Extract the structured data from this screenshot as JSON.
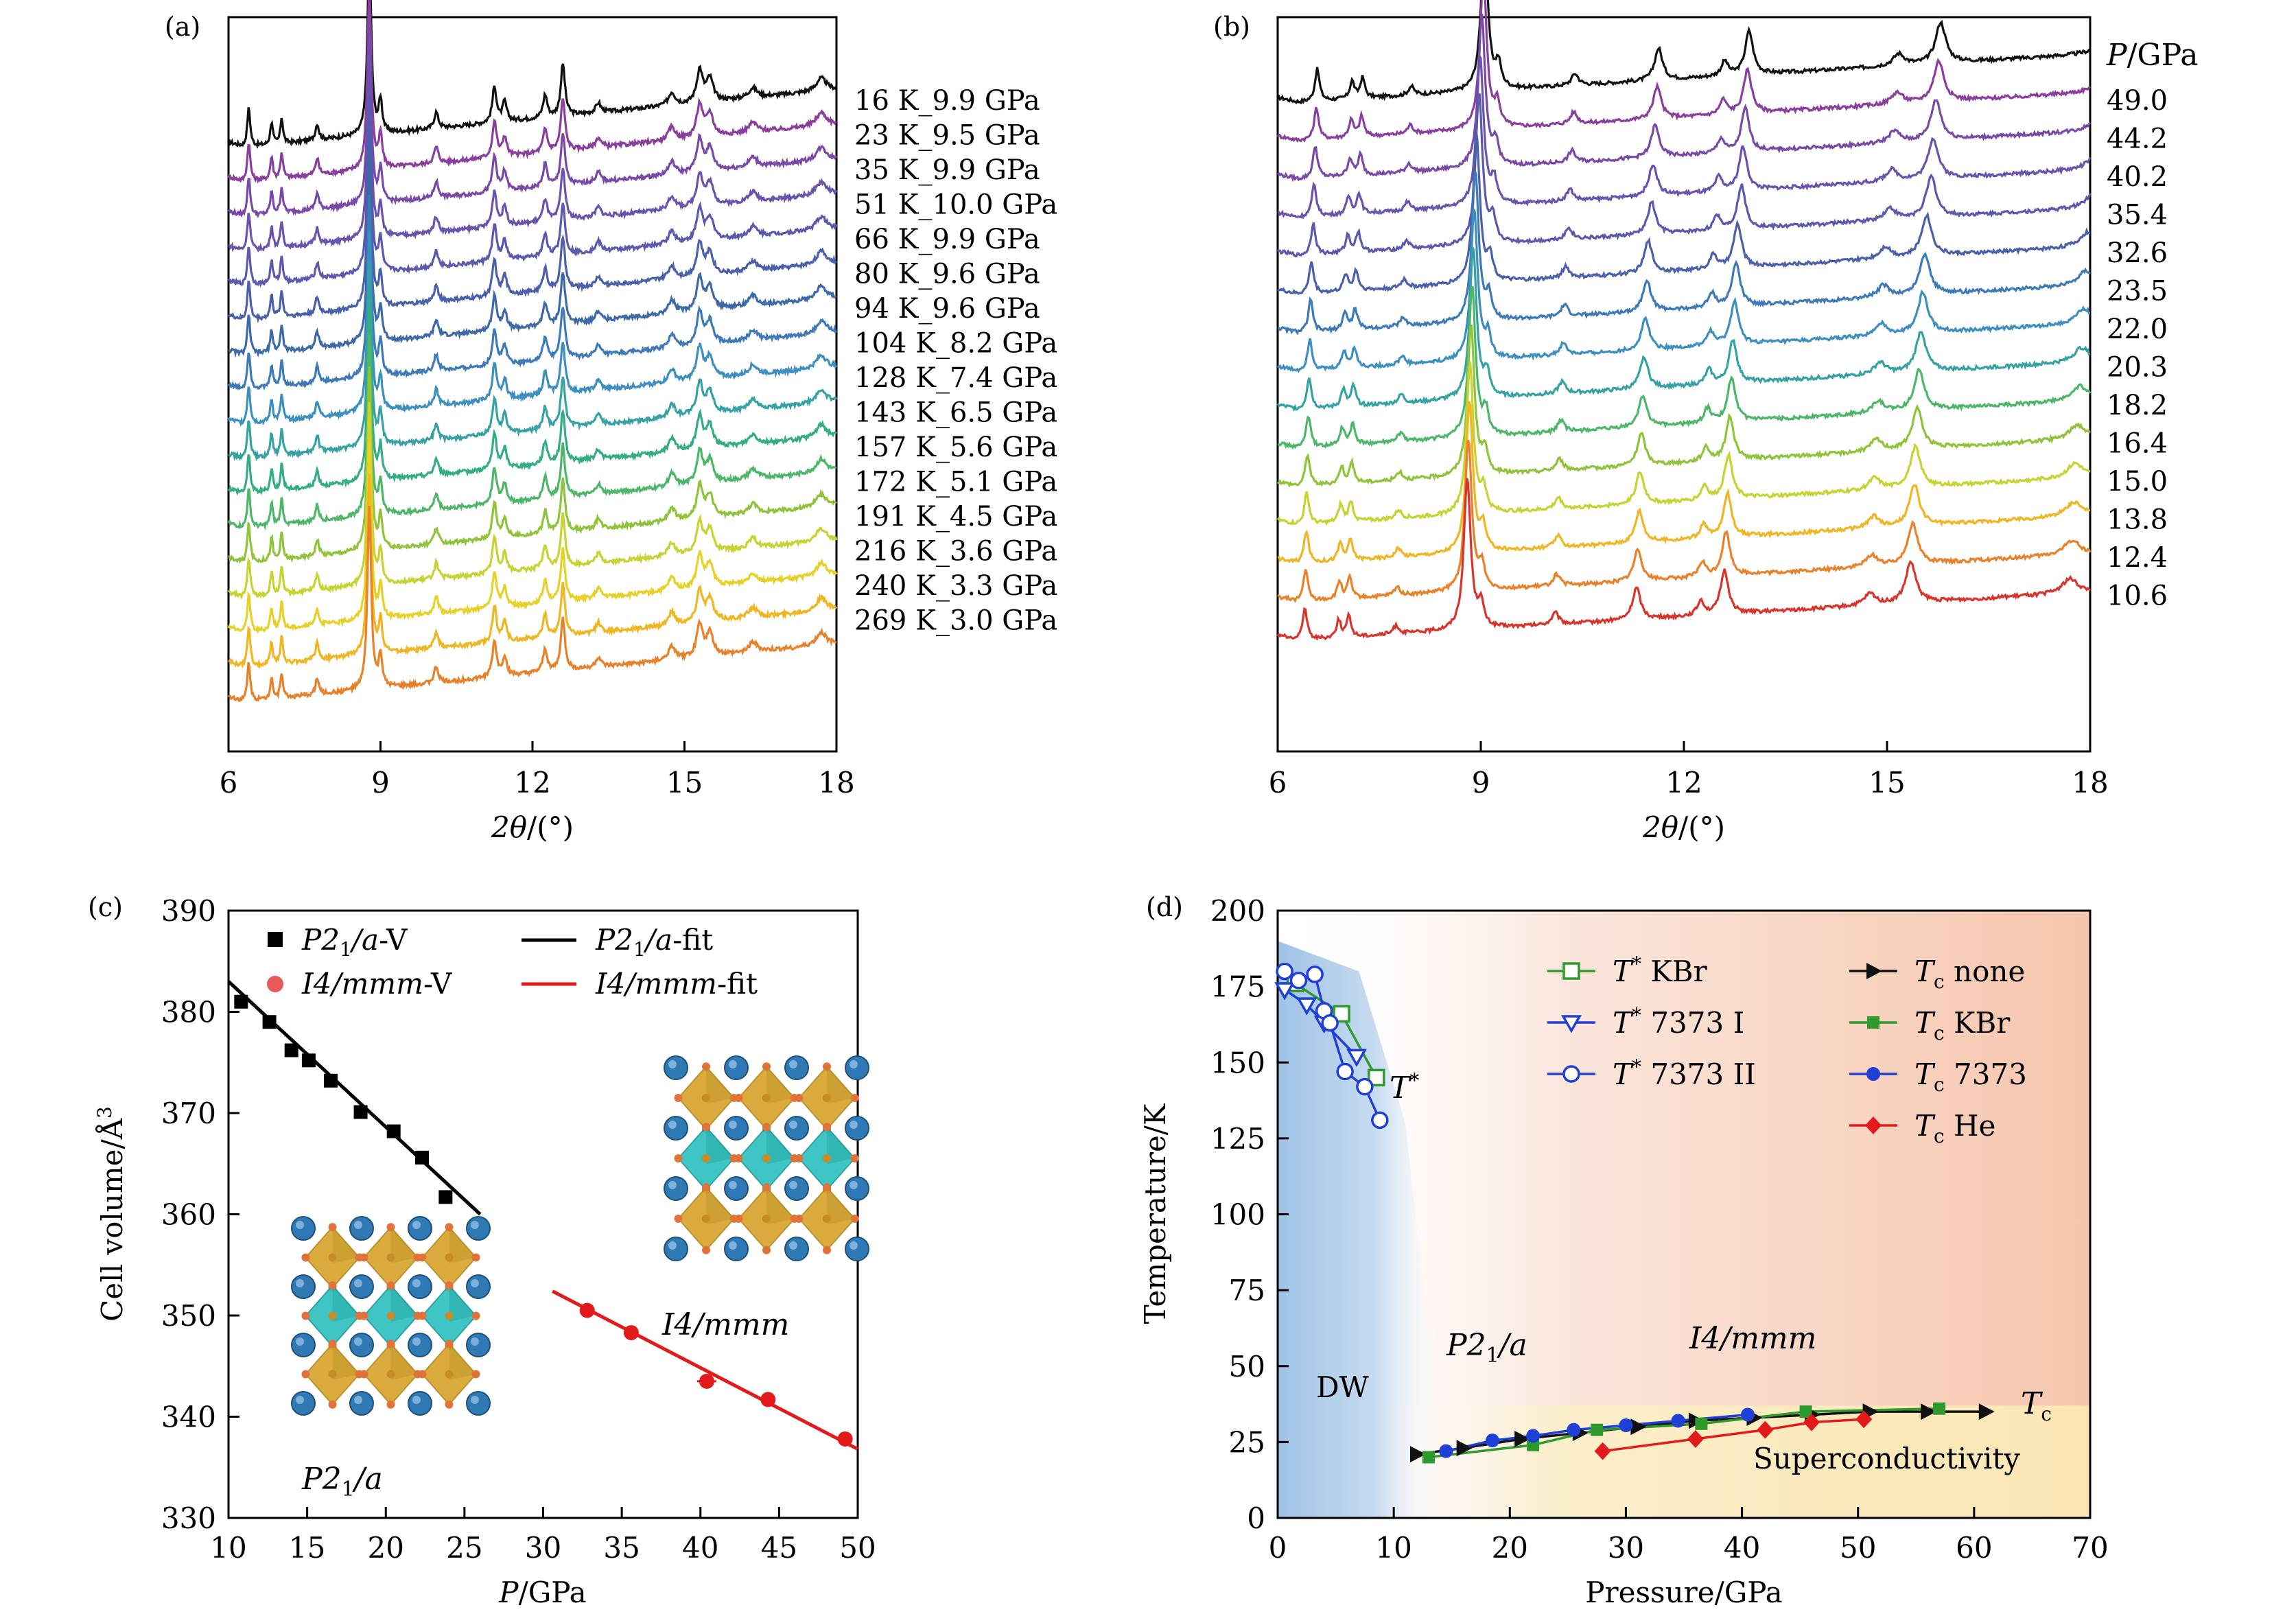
{
  "chart_data": [
    {
      "panel": "(a)",
      "type": "line",
      "xlabel": "2θ/(°)",
      "ylabel": "",
      "xlim": [
        6,
        18
      ],
      "xticks": [
        "6",
        "9",
        "12",
        "15",
        "18"
      ],
      "peaks_2theta": [
        6.4,
        6.85,
        7.05,
        7.75,
        8.78,
        9.0,
        10.1,
        11.25,
        11.45,
        12.25,
        12.6,
        13.3,
        14.75,
        15.3,
        15.45,
        16.35,
        17.7
      ],
      "series": [
        {
          "name": "16 K_9.9 GPa",
          "color": "#111111"
        },
        {
          "name": "23 K_9.5 GPa",
          "color": "#8a3f9f"
        },
        {
          "name": "35 K_9.9 GPa",
          "color": "#7a49a8"
        },
        {
          "name": "51 K_10.0 GPa",
          "color": "#6a52ad"
        },
        {
          "name": "66 K_9.9 GPa",
          "color": "#5a59ad"
        },
        {
          "name": "80 K_9.6 GPa",
          "color": "#4b60aa"
        },
        {
          "name": "94 K_9.6 GPa",
          "color": "#3e69a8"
        },
        {
          "name": "104 K_8.2 GPa",
          "color": "#3d7ab7"
        },
        {
          "name": "128 K_7.4 GPa",
          "color": "#3d8fc0"
        },
        {
          "name": "143 K_6.5 GPa",
          "color": "#36a2a4"
        },
        {
          "name": "157 K_5.6 GPa",
          "color": "#34ac84"
        },
        {
          "name": "172 K_5.1 GPa",
          "color": "#4db669"
        },
        {
          "name": "191 K_4.5 GPa",
          "color": "#8fc43a"
        },
        {
          "name": "216 K_3.6 GPa",
          "color": "#c7d233"
        },
        {
          "name": "240 K_3.3 GPa",
          "color": "#e7d129"
        },
        {
          "name": "269 K_3.0 GPa",
          "color": "#efb523"
        },
        {
          "name": "",
          "color": "#e9812a"
        }
      ]
    },
    {
      "panel": "(b)",
      "type": "line",
      "xlabel": "2θ/(°)",
      "ylabel": "",
      "legend_title": "P/GPa",
      "xlim": [
        6,
        18
      ],
      "xticks": [
        "6",
        "9",
        "12",
        "15",
        "18"
      ],
      "series": [
        {
          "name": "49.0",
          "color": "#111111",
          "peak_shift": 0.32
        },
        {
          "name": "44.2",
          "color": "#8a3f9f",
          "peak_shift": 0.3
        },
        {
          "name": "40.2",
          "color": "#7a49a8",
          "peak_shift": 0.27
        },
        {
          "name": "35.4",
          "color": "#6a52ad",
          "peak_shift": 0.24
        },
        {
          "name": "32.6",
          "color": "#5a59ad",
          "peak_shift": 0.22
        },
        {
          "name": "23.5",
          "color": "#4b60aa",
          "peak_shift": 0.17
        },
        {
          "name": "22.0",
          "color": "#3d7ab7",
          "peak_shift": 0.15
        },
        {
          "name": "20.3",
          "color": "#3d8fc0",
          "peak_shift": 0.13
        },
        {
          "name": "18.2",
          "color": "#36a2a4",
          "peak_shift": 0.11
        },
        {
          "name": "16.4",
          "color": "#4db669",
          "peak_shift": 0.09
        },
        {
          "name": "15.0",
          "color": "#8fc43a",
          "peak_shift": 0.07
        },
        {
          "name": "13.8",
          "color": "#c7d233",
          "peak_shift": 0.05
        },
        {
          "name": "12.4",
          "color": "#efb523",
          "peak_shift": 0.04
        },
        {
          "name": "10.6",
          "color": "#e9812a",
          "peak_shift": 0.02
        },
        {
          "name": "",
          "color": "#d9342b",
          "peak_shift": 0.0
        }
      ]
    },
    {
      "panel": "(c)",
      "type": "scatter",
      "xlabel": "P/GPa",
      "ylabel": "Cell volume/Å³",
      "xlim": [
        10,
        50
      ],
      "ylim": [
        330,
        390
      ],
      "xticks": [
        "10",
        "15",
        "20",
        "25",
        "30",
        "35",
        "40",
        "45",
        "50"
      ],
      "yticks": [
        "330",
        "340",
        "350",
        "360",
        "370",
        "380",
        "390"
      ],
      "series": [
        {
          "name": "P2₁/a-V",
          "color": "#000000",
          "marker": "square",
          "x": [
            10.8,
            12.6,
            14.0,
            15.1,
            16.5,
            18.4,
            20.5,
            22.3,
            23.8
          ],
          "y": [
            381.0,
            379.0,
            376.2,
            375.2,
            373.2,
            370.1,
            368.2,
            365.6,
            361.7
          ]
        },
        {
          "name": "I4/mmm-V",
          "color": "#e31a1c",
          "marker": "circle",
          "x": [
            32.8,
            35.6,
            40.4,
            44.3,
            49.2
          ],
          "y": [
            350.5,
            348.3,
            343.5,
            341.7,
            337.8
          ]
        },
        {
          "name": "P2₁/a-fit",
          "color": "#000000",
          "line": true,
          "x": [
            10,
            26
          ],
          "y": [
            383.0,
            360.0
          ]
        },
        {
          "name": "I4/mmm-fit",
          "color": "#e31a1c",
          "line": true,
          "x": [
            30.6,
            50
          ],
          "y": [
            352.4,
            336.8
          ]
        }
      ],
      "annotations": [
        "P2₁/a",
        "I4/mmm"
      ]
    },
    {
      "panel": "(d)",
      "type": "scatter",
      "xlabel": "Pressure/GPa",
      "ylabel": "Temperature/K",
      "xlim": [
        0,
        70
      ],
      "ylim": [
        0,
        200
      ],
      "xticks": [
        "0",
        "10",
        "20",
        "30",
        "40",
        "50",
        "60",
        "70"
      ],
      "yticks": [
        "0",
        "25",
        "50",
        "75",
        "100",
        "125",
        "150",
        "175",
        "200"
      ],
      "regions": [
        "DW",
        "P2₁/a",
        "I4/mmm",
        "Superconductivity"
      ],
      "curve_labels": [
        "T*",
        "Tc"
      ],
      "series": [
        {
          "name": "T* KBr",
          "color": "#2e9a2e",
          "marker": "open-square",
          "x": [
            1.5,
            5.5,
            8.5
          ],
          "y": [
            176,
            166,
            145
          ]
        },
        {
          "name": "T* 7373 I",
          "color": "#1f3fd6",
          "marker": "open-triangle-down",
          "x": [
            0.6,
            2.5,
            4.0,
            6.8
          ],
          "y": [
            174,
            169,
            163,
            152
          ]
        },
        {
          "name": "T* 7373 II",
          "color": "#1f3fd6",
          "marker": "open-circle",
          "x": [
            0.6,
            1.8,
            3.2,
            4.0,
            4.5,
            5.8,
            7.5,
            8.8
          ],
          "y": [
            180,
            177,
            179,
            167,
            163,
            147,
            142,
            131
          ]
        },
        {
          "name": "Tc none",
          "color": "#111111",
          "marker": "triangle-right",
          "x": [
            12,
            16,
            21,
            26,
            31,
            36,
            41,
            46,
            51,
            56,
            61
          ],
          "y": [
            21,
            23,
            26,
            28,
            30,
            32,
            33,
            34,
            35,
            35,
            35
          ]
        },
        {
          "name": "Tc KBr",
          "color": "#2e9a2e",
          "marker": "square",
          "x": [
            13,
            22,
            27.5,
            36.5,
            45.5,
            57
          ],
          "y": [
            20,
            24,
            29,
            31,
            35,
            36
          ]
        },
        {
          "name": "Tc 7373",
          "color": "#1f3fd6",
          "marker": "circle",
          "x": [
            14.5,
            18.5,
            22,
            25.5,
            30,
            34.5,
            40.5
          ],
          "y": [
            22,
            25.5,
            27,
            29,
            30.5,
            32,
            34
          ]
        },
        {
          "name": "Tc He",
          "color": "#e31a1c",
          "marker": "diamond",
          "x": [
            28,
            36,
            42,
            46,
            50.5
          ],
          "y": [
            22,
            26,
            29,
            31.5,
            32.5
          ]
        }
      ]
    }
  ]
}
